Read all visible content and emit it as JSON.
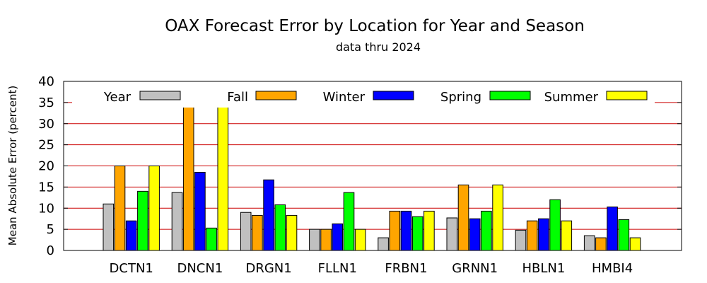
{
  "chart_data": {
    "type": "bar",
    "title": "OAX Forecast Error by Location for Year and Season",
    "subtitle": "data thru 2024",
    "ylabel": "Mean Absolute Error (percent)",
    "xlabel": "",
    "ylim": [
      0,
      40
    ],
    "yticks": [
      0,
      5,
      10,
      15,
      20,
      25,
      30,
      35,
      40
    ],
    "grid": "horizontal",
    "grid_color": "#cc0000",
    "legend_placement": "top",
    "categories": [
      "DCTN1",
      "DNCN1",
      "DRGN1",
      "FLLN1",
      "FRBN1",
      "GRNN1",
      "HBLN1",
      "HMBI4"
    ],
    "series": [
      {
        "name": "Year",
        "color": "#c0c0c0",
        "values": [
          11,
          13.7,
          9,
          5,
          3,
          7.7,
          4.8,
          3.5
        ]
      },
      {
        "name": "Fall",
        "color": "#ffa500",
        "values": [
          20,
          34.8,
          8.3,
          5,
          9.3,
          15.5,
          7,
          3
        ]
      },
      {
        "name": "Winter",
        "color": "#0000ff",
        "values": [
          7,
          18.5,
          16.7,
          6.3,
          9.3,
          7.5,
          7.5,
          10.3
        ]
      },
      {
        "name": "Spring",
        "color": "#00ff00",
        "values": [
          14,
          5.3,
          10.8,
          13.7,
          8,
          9.3,
          12,
          7.3
        ]
      },
      {
        "name": "Summer",
        "color": "#ffff00",
        "values": [
          20,
          34.8,
          8.3,
          5,
          9.3,
          15.5,
          7,
          3
        ]
      }
    ]
  }
}
